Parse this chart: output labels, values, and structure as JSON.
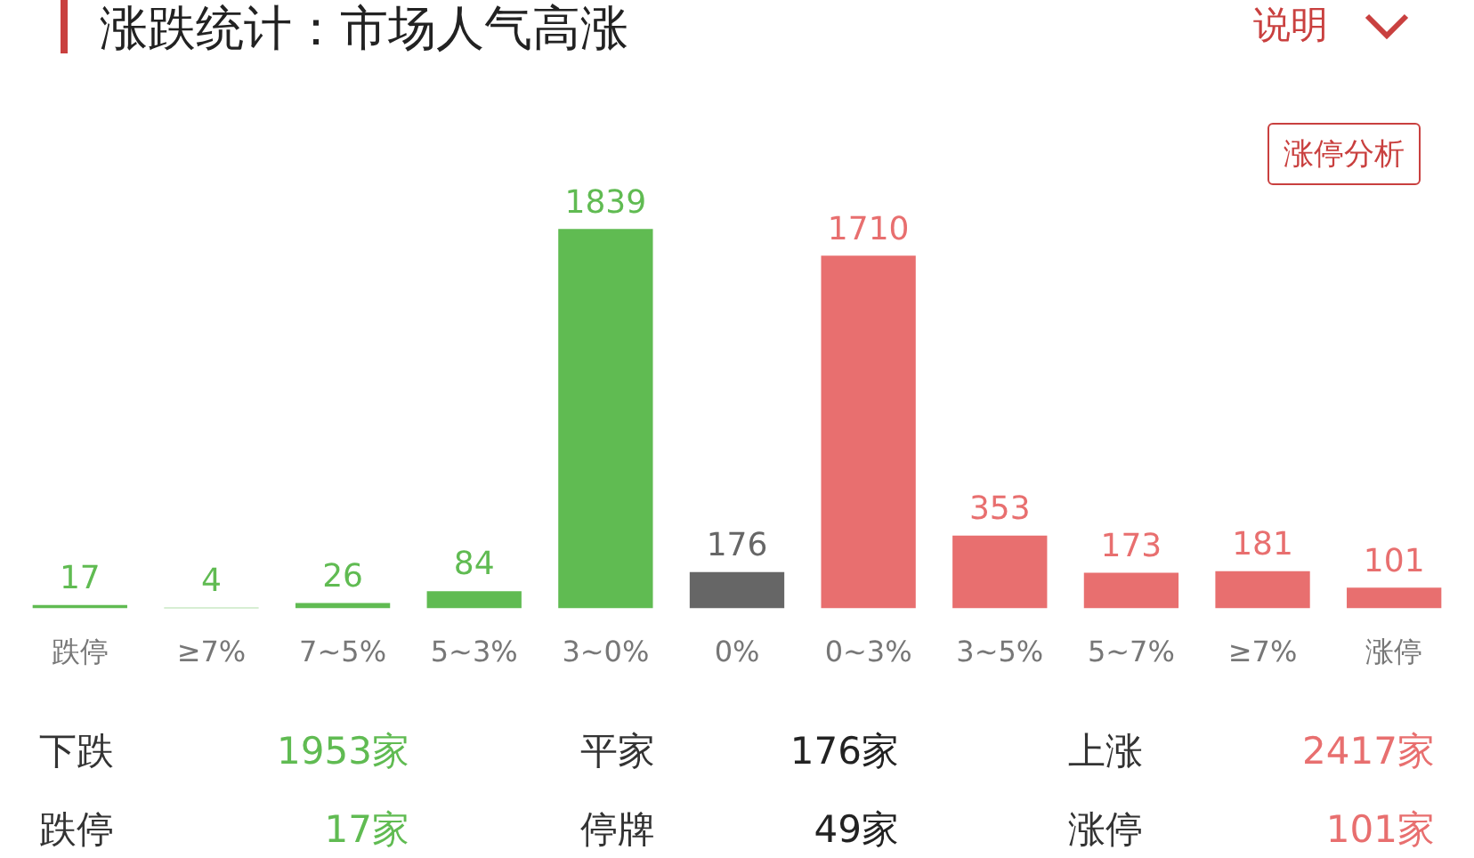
{
  "chart_data": {
    "type": "bar",
    "title": "涨跌统计：市场人气高涨",
    "categories": [
      "跌停",
      "≥7%",
      "7~5%",
      "5~3%",
      "3~0%",
      "0%",
      "0~3%",
      "3~5%",
      "5~7%",
      "≥7%",
      "涨停"
    ],
    "values": [
      17,
      4,
      26,
      84,
      1839,
      176,
      1710,
      353,
      173,
      181,
      101
    ],
    "colors": [
      "#60bb52",
      "#60bb52",
      "#60bb52",
      "#60bb52",
      "#60bb52",
      "#666666",
      "#e86f6f",
      "#e86f6f",
      "#e86f6f",
      "#e86f6f",
      "#e86f6f"
    ],
    "data_labels": true,
    "annotations": [
      "说明",
      "涨停分析",
      "下跌",
      "1953家",
      "平家",
      "176家",
      "上涨",
      "2417家",
      "跌停",
      "17家",
      "停牌",
      "49家",
      "涨停",
      "101家"
    ]
  }
}
